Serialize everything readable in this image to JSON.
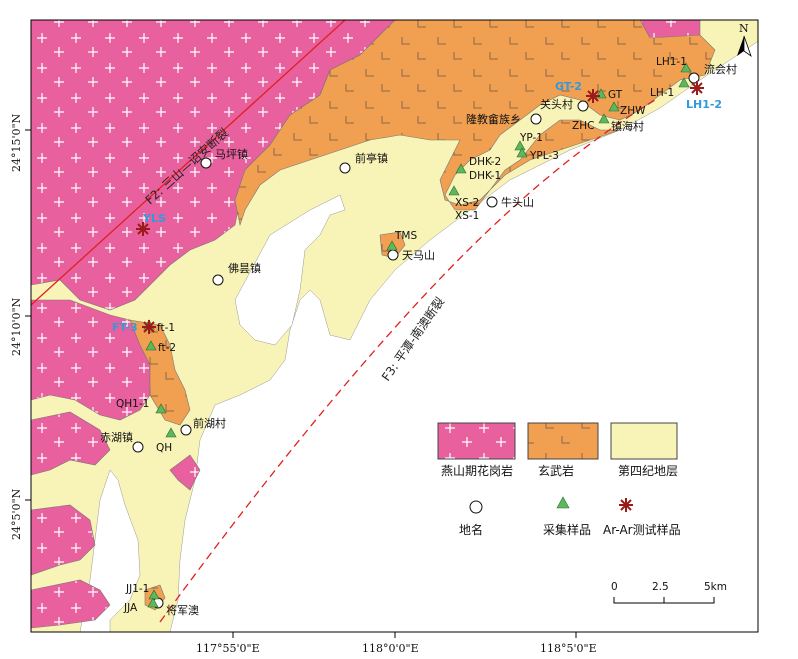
{
  "colors": {
    "granite": "#e8609e",
    "basalt": "#f0a050",
    "quaternary": "#f8f3b6",
    "sea": "#ffffff",
    "fault": "#e02020",
    "sample_marker": "#5cb85c",
    "arar_marker": "#9b1b1b",
    "blue_label": "#3399dd"
  },
  "axes": {
    "left_ticks": [
      "24°15'0\"N",
      "24°10'0\"N",
      "24°5'0\"N"
    ],
    "bottom_ticks": [
      "117°55'0\"E",
      "118°0'0\"E",
      "118°5'0\"E"
    ]
  },
  "north_arrow": {
    "label": "N"
  },
  "faults": {
    "f2": "F2: 三山—诏安断裂",
    "f3": "F3: 平潭-南澳断裂"
  },
  "places": {
    "mapingzhen": "马坪镇",
    "qiantingzhen": "前亭镇",
    "fozezhen": "佛昙镇",
    "longjiao": "隆教畲族乡",
    "guantoucun": "关头村",
    "zhenhaicun": "镇海村",
    "liuhuicun": "流会村",
    "niutoushan": "牛头山",
    "tianmashan": "天马山",
    "qianhucun": "前湖村",
    "chihuzhen": "赤湖镇",
    "jiangjunao": "将军澳"
  },
  "samples": {
    "lh1_1": "LH1-1",
    "lh_1": "LH-1",
    "gt": "GT",
    "zhw": "ZHW",
    "zhc": "ZHC",
    "yp1": "YP-1",
    "ypl3": "YPL-3",
    "dhk2": "DHK-2",
    "dhk1": "DHK-1",
    "xs2": "XS-2",
    "xs1": "XS-1",
    "tms": "TMS",
    "ft1": "ft-1",
    "ft2": "ft-2",
    "qh1_1": "QH1-1",
    "qh": "QH",
    "jj1_1": "JJ1-1",
    "jja": "JJA"
  },
  "arar_labels": {
    "gt2": "GT-2",
    "lh1_2": "LH1-2",
    "yls": "YLS",
    "ft3": "FT-3"
  },
  "legend": {
    "granite": "燕山期花岗岩",
    "basalt": "玄武岩",
    "quaternary": "第四纪地层",
    "place": "地名",
    "sample": "采集样品",
    "arar": "Ar-Ar测试样品"
  },
  "scale_bar": {
    "ticks": [
      "0",
      "2.5",
      "5km"
    ]
  }
}
